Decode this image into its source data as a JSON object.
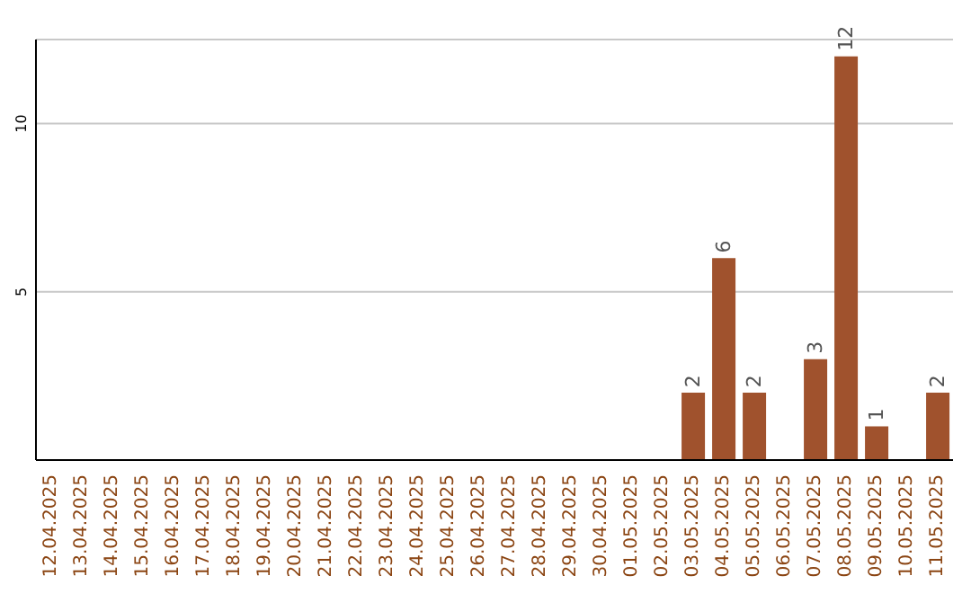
{
  "chart_data": {
    "type": "bar",
    "categories": [
      "12.04.2025",
      "13.04.2025",
      "14.04.2025",
      "15.04.2025",
      "16.04.2025",
      "17.04.2025",
      "18.04.2025",
      "19.04.2025",
      "20.04.2025",
      "21.04.2025",
      "22.04.2025",
      "23.04.2025",
      "24.04.2025",
      "25.04.2025",
      "26.04.2025",
      "27.04.2025",
      "28.04.2025",
      "29.04.2025",
      "30.04.2025",
      "01.05.2025",
      "02.05.2025",
      "03.05.2025",
      "04.05.2025",
      "05.05.2025",
      "06.05.2025",
      "07.05.2025",
      "08.05.2025",
      "09.05.2025",
      "10.05.2025",
      "11.05.2025"
    ],
    "values": [
      0,
      0,
      0,
      0,
      0,
      0,
      0,
      0,
      0,
      0,
      0,
      0,
      0,
      0,
      0,
      0,
      0,
      0,
      0,
      0,
      0,
      2,
      6,
      2,
      0,
      3,
      12,
      1,
      0,
      2
    ],
    "value_labels": [
      null,
      null,
      null,
      null,
      null,
      null,
      null,
      null,
      null,
      null,
      null,
      null,
      null,
      null,
      null,
      null,
      null,
      null,
      null,
      null,
      null,
      "2",
      "6",
      "2",
      null,
      "3",
      "12",
      "1",
      null,
      "2"
    ],
    "color": "#a0522d",
    "ylim": [
      0,
      12.5
    ],
    "yticks": [
      5,
      10
    ],
    "grid": "y"
  }
}
